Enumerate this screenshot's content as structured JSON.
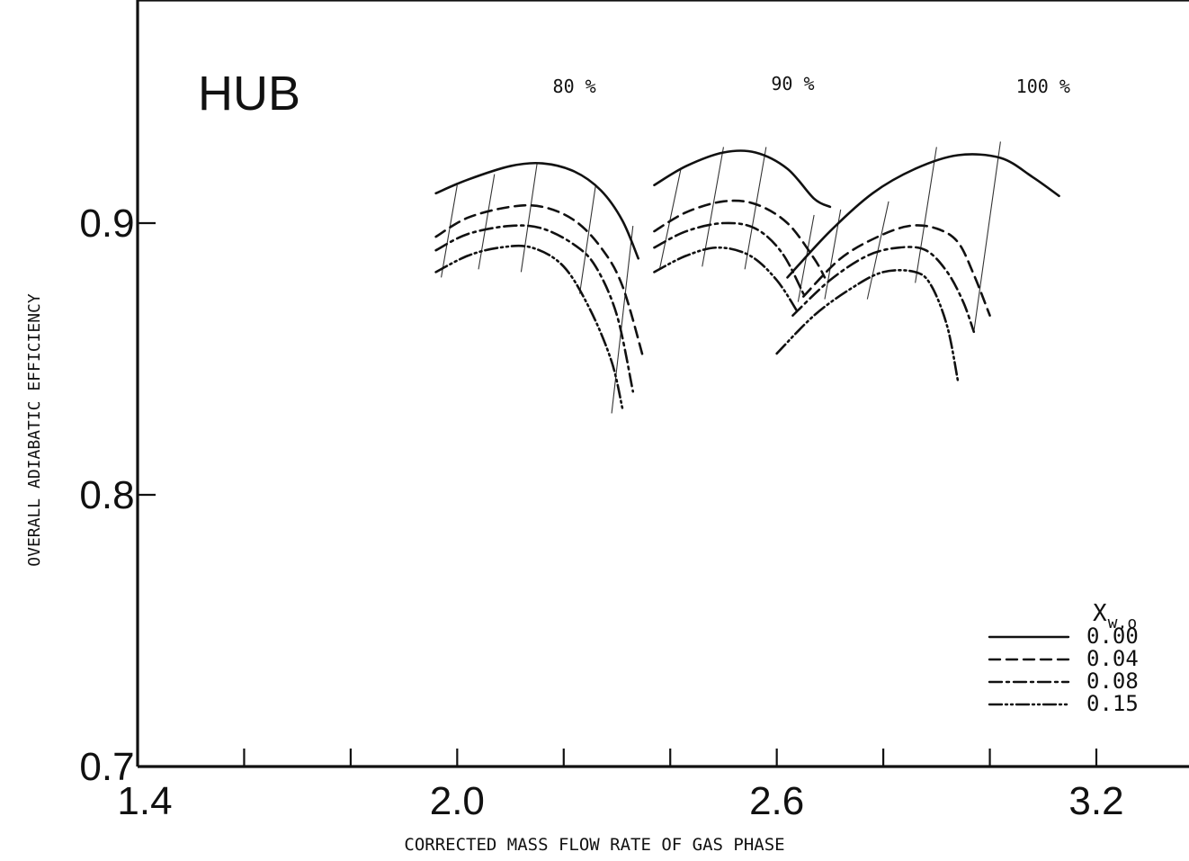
{
  "chart_data": {
    "type": "line",
    "panel_label": "HUB",
    "xlabel": "CORRECTED MASS FLOW RATE OF GAS PHASE",
    "ylabel": "OVERALL ADIABATIC EFFICIENCY",
    "xlim": [
      1.4,
      3.4
    ],
    "ylim": [
      0.7,
      0.98
    ],
    "x_tick_labels": [
      {
        "value": 1.4,
        "label": "1.4"
      },
      {
        "value": 2.0,
        "label": "2.0"
      },
      {
        "value": 2.6,
        "label": "2.6"
      },
      {
        "value": 3.2,
        "label": "3.2"
      }
    ],
    "x_minor_ticks": [
      1.6,
      1.8,
      2.2,
      2.4,
      2.8,
      3.0
    ],
    "y_tick_labels": [
      {
        "value": 0.7,
        "label": "0.7"
      },
      {
        "value": 0.8,
        "label": "0.8"
      },
      {
        "value": 0.9,
        "label": "0.9"
      }
    ],
    "grid": false,
    "speed_labels": [
      {
        "text": "80 %",
        "x": 2.22,
        "y": 0.948
      },
      {
        "text": "90 %",
        "x": 2.63,
        "y": 0.949
      },
      {
        "text": "100 %",
        "x": 3.1,
        "y": 0.948
      }
    ],
    "legend": {
      "title": "X",
      "title_subscript": "w,o",
      "position": "bottom-right"
    },
    "series": [
      {
        "name": "0.00",
        "dash": "",
        "segments": [
          {
            "speed": "80%",
            "points": [
              [
                1.96,
                0.911
              ],
              [
                2.02,
                0.916
              ],
              [
                2.1,
                0.921
              ],
              [
                2.16,
                0.922
              ],
              [
                2.22,
                0.919
              ],
              [
                2.27,
                0.912
              ],
              [
                2.31,
                0.901
              ],
              [
                2.34,
                0.887
              ]
            ]
          },
          {
            "speed": "90%",
            "points": [
              [
                2.37,
                0.914
              ],
              [
                2.43,
                0.921
              ],
              [
                2.5,
                0.926
              ],
              [
                2.56,
                0.926
              ],
              [
                2.62,
                0.92
              ],
              [
                2.67,
                0.909
              ],
              [
                2.7,
                0.906
              ]
            ]
          },
          {
            "speed": "100%",
            "points": [
              [
                2.62,
                0.88
              ],
              [
                2.7,
                0.897
              ],
              [
                2.78,
                0.911
              ],
              [
                2.86,
                0.92
              ],
              [
                2.94,
                0.925
              ],
              [
                3.02,
                0.924
              ],
              [
                3.08,
                0.917
              ],
              [
                3.13,
                0.91
              ]
            ]
          }
        ]
      },
      {
        "name": "0.04",
        "dash": "12 7",
        "segments": [
          {
            "speed": "80%",
            "points": [
              [
                1.96,
                0.895
              ],
              [
                2.02,
                0.902
              ],
              [
                2.1,
                0.906
              ],
              [
                2.16,
                0.906
              ],
              [
                2.22,
                0.901
              ],
              [
                2.27,
                0.891
              ],
              [
                2.31,
                0.877
              ],
              [
                2.35,
                0.85
              ]
            ]
          },
          {
            "speed": "90%",
            "points": [
              [
                2.37,
                0.897
              ],
              [
                2.43,
                0.904
              ],
              [
                2.5,
                0.908
              ],
              [
                2.56,
                0.907
              ],
              [
                2.62,
                0.9
              ],
              [
                2.67,
                0.887
              ],
              [
                2.69,
                0.88
              ]
            ]
          },
          {
            "speed": "100%",
            "points": [
              [
                2.65,
                0.873
              ],
              [
                2.72,
                0.887
              ],
              [
                2.79,
                0.895
              ],
              [
                2.85,
                0.899
              ],
              [
                2.9,
                0.898
              ],
              [
                2.94,
                0.893
              ],
              [
                2.97,
                0.881
              ],
              [
                3.0,
                0.866
              ]
            ]
          }
        ]
      },
      {
        "name": "0.08",
        "dash": "14 5 3 5",
        "segments": [
          {
            "speed": "80%",
            "points": [
              [
                1.96,
                0.89
              ],
              [
                2.02,
                0.896
              ],
              [
                2.1,
                0.899
              ],
              [
                2.16,
                0.898
              ],
              [
                2.22,
                0.892
              ],
              [
                2.26,
                0.884
              ],
              [
                2.3,
                0.866
              ],
              [
                2.33,
                0.838
              ]
            ]
          },
          {
            "speed": "90%",
            "points": [
              [
                2.37,
                0.891
              ],
              [
                2.43,
                0.897
              ],
              [
                2.5,
                0.9
              ],
              [
                2.56,
                0.898
              ],
              [
                2.61,
                0.889
              ],
              [
                2.65,
                0.874
              ]
            ]
          },
          {
            "speed": "100%",
            "points": [
              [
                2.63,
                0.866
              ],
              [
                2.7,
                0.879
              ],
              [
                2.77,
                0.888
              ],
              [
                2.83,
                0.891
              ],
              [
                2.88,
                0.89
              ],
              [
                2.92,
                0.882
              ],
              [
                2.95,
                0.871
              ],
              [
                2.97,
                0.86
              ]
            ]
          }
        ]
      },
      {
        "name": "0.15",
        "dash": "14 4 2 4 2 4",
        "segments": [
          {
            "speed": "80%",
            "points": [
              [
                1.96,
                0.882
              ],
              [
                2.02,
                0.888
              ],
              [
                2.08,
                0.891
              ],
              [
                2.14,
                0.891
              ],
              [
                2.2,
                0.884
              ],
              [
                2.25,
                0.868
              ],
              [
                2.29,
                0.849
              ],
              [
                2.31,
                0.832
              ]
            ]
          },
          {
            "speed": "90%",
            "points": [
              [
                2.37,
                0.882
              ],
              [
                2.43,
                0.888
              ],
              [
                2.49,
                0.891
              ],
              [
                2.55,
                0.888
              ],
              [
                2.6,
                0.879
              ],
              [
                2.64,
                0.867
              ]
            ]
          },
          {
            "speed": "100%",
            "points": [
              [
                2.6,
                0.852
              ],
              [
                2.67,
                0.866
              ],
              [
                2.74,
                0.876
              ],
              [
                2.8,
                0.882
              ],
              [
                2.86,
                0.882
              ],
              [
                2.89,
                0.877
              ],
              [
                2.92,
                0.862
              ],
              [
                2.94,
                0.842
              ]
            ]
          }
        ]
      }
    ],
    "constant_condition_lines": [
      [
        [
          1.97,
          0.88
        ],
        [
          2.0,
          0.914
        ]
      ],
      [
        [
          2.04,
          0.883
        ],
        [
          2.07,
          0.918
        ]
      ],
      [
        [
          2.12,
          0.882
        ],
        [
          2.15,
          0.922
        ]
      ],
      [
        [
          2.23,
          0.874
        ],
        [
          2.26,
          0.914
        ]
      ],
      [
        [
          2.29,
          0.83
        ],
        [
          2.33,
          0.899
        ]
      ],
      [
        [
          2.38,
          0.883
        ],
        [
          2.42,
          0.92
        ]
      ],
      [
        [
          2.46,
          0.884
        ],
        [
          2.5,
          0.928
        ]
      ],
      [
        [
          2.54,
          0.883
        ],
        [
          2.58,
          0.928
        ]
      ],
      [
        [
          2.64,
          0.871
        ],
        [
          2.67,
          0.903
        ]
      ],
      [
        [
          2.69,
          0.872
        ],
        [
          2.72,
          0.905
        ]
      ],
      [
        [
          2.77,
          0.872
        ],
        [
          2.81,
          0.908
        ]
      ],
      [
        [
          2.86,
          0.878
        ],
        [
          2.9,
          0.928
        ]
      ],
      [
        [
          2.97,
          0.86
        ],
        [
          3.02,
          0.93
        ]
      ]
    ],
    "colors": {
      "background": "#ffffff",
      "ink": "#111111"
    }
  }
}
